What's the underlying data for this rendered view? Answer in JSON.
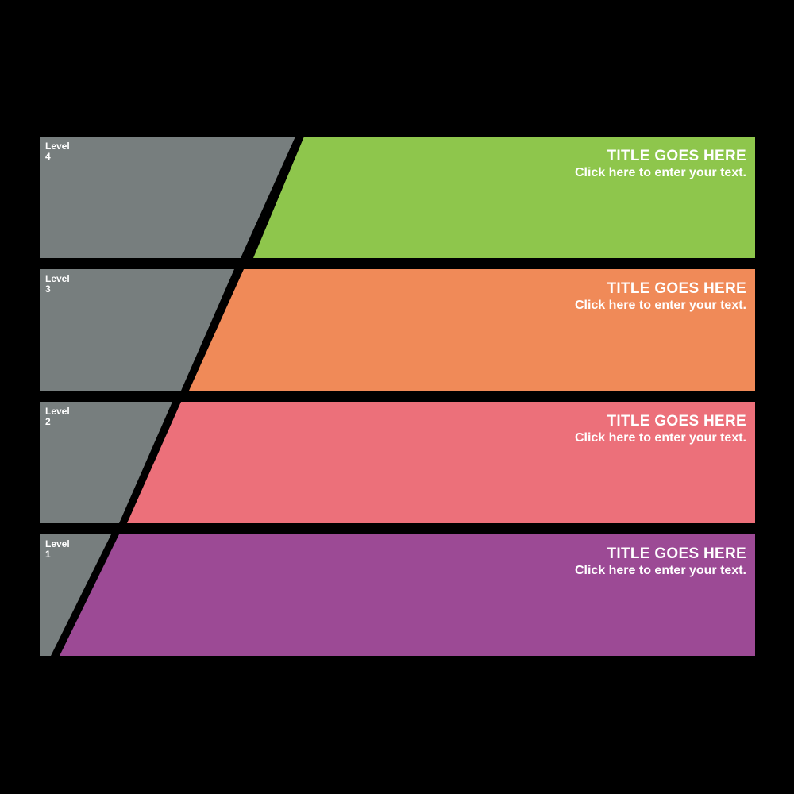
{
  "diagram": {
    "background_color": "#000000",
    "label_shape_color": "#777E7E",
    "text_color": "#FFFFFF",
    "bands": [
      {
        "level_word": "Level",
        "level_number": "4",
        "title": "TITLE GOES HERE",
        "subtitle": "Click here to enter your text.",
        "color": "#8EC64C"
      },
      {
        "level_word": "Level",
        "level_number": "3",
        "title": "TITLE GOES HERE",
        "subtitle": "Click here to enter your text.",
        "color": "#F08A58"
      },
      {
        "level_word": "Level",
        "level_number": "2",
        "title": "TITLE GOES HERE",
        "subtitle": "Click here to enter your text.",
        "color": "#EC707A"
      },
      {
        "level_word": "Level",
        "level_number": "1",
        "title": "TITLE GOES HERE",
        "subtitle": "Click here to enter your text.",
        "color": "#9C4A95"
      }
    ]
  }
}
